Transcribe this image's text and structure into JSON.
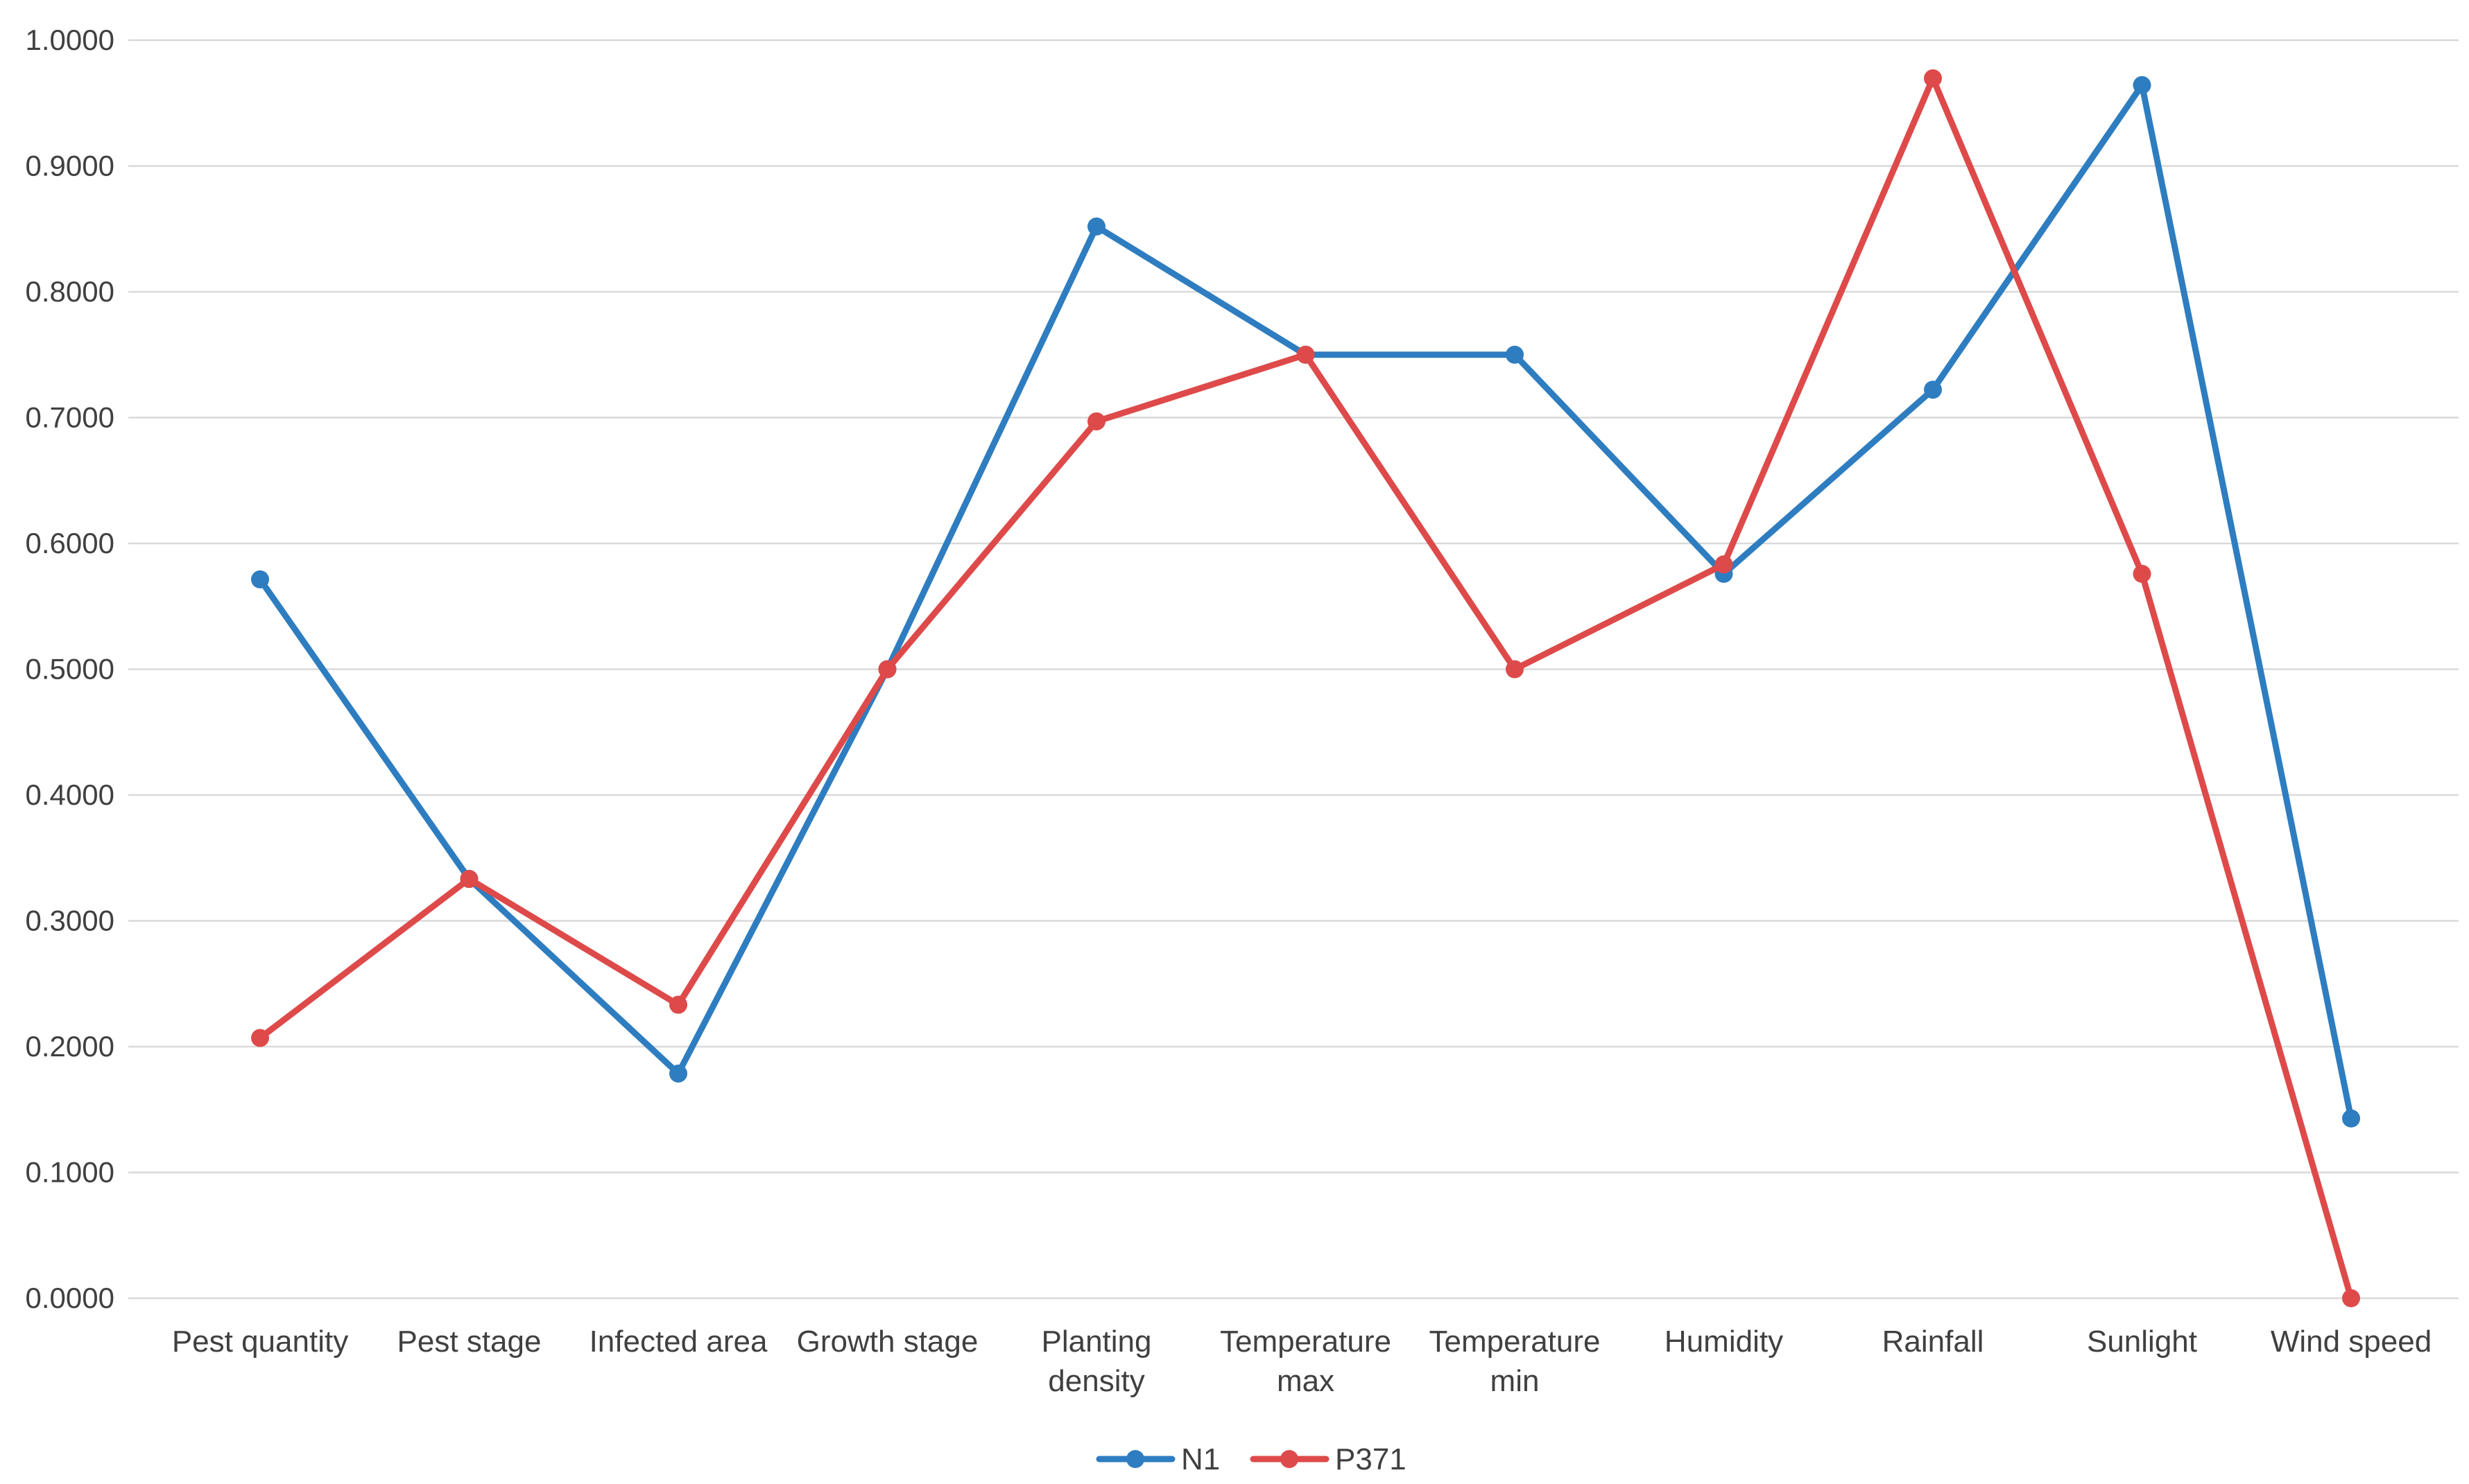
{
  "chart_data": {
    "type": "line",
    "categories": [
      [
        "Pest quantity"
      ],
      [
        "Pest stage"
      ],
      [
        "Infected area"
      ],
      [
        "Growth stage"
      ],
      [
        "Planting",
        "density"
      ],
      [
        "Temperature",
        "max"
      ],
      [
        "Temperature",
        "min"
      ],
      [
        "Humidity"
      ],
      [
        "Rainfall"
      ],
      [
        "Sunlight"
      ],
      [
        "Wind speed"
      ]
    ],
    "series": [
      {
        "name": "N1",
        "color": "#2e7dc0",
        "values": [
          0.5714,
          0.3333,
          0.1786,
          0.5,
          0.8519,
          0.75,
          0.75,
          0.5758,
          0.7222,
          0.9643,
          0.1429
        ]
      },
      {
        "name": "P371",
        "color": "#de4a4a",
        "values": [
          0.2069,
          0.3333,
          0.2333,
          0.5,
          0.697,
          0.75,
          0.5,
          0.5833,
          0.9697,
          0.5758,
          0.0
        ]
      }
    ],
    "y_ticks": [
      "0.0000",
      "0.1000",
      "0.2000",
      "0.3000",
      "0.4000",
      "0.5000",
      "0.6000",
      "0.7000",
      "0.8000",
      "0.9000",
      "1.0000"
    ],
    "ylim": [
      0,
      1
    ],
    "grid": true,
    "legend_position": "bottom-center",
    "title": "",
    "xlabel": "",
    "ylabel": ""
  }
}
